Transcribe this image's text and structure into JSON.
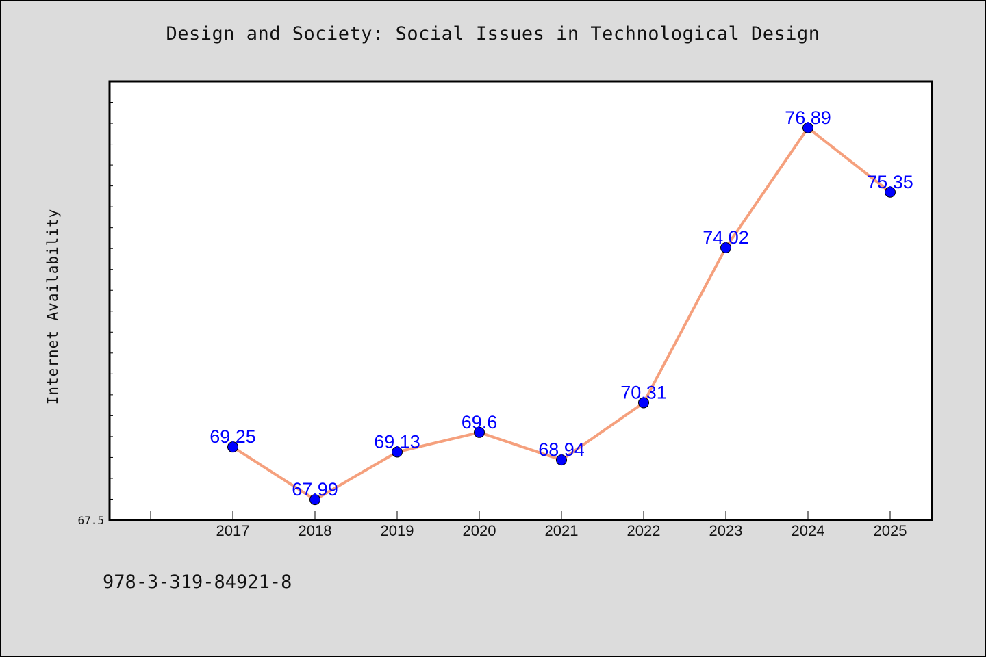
{
  "chart_data": {
    "type": "line",
    "title": "Design and Society: Social Issues in Technological Design",
    "xlabel": "",
    "ylabel": "Internet Availability",
    "categories": [
      "2017",
      "2018",
      "2019",
      "2020",
      "2021",
      "2022",
      "2023",
      "2024",
      "2025"
    ],
    "series": [
      {
        "values": [
          69.25,
          67.99,
          69.13,
          69.6,
          68.94,
          70.31,
          74.02,
          76.89,
          75.35
        ],
        "data_labels": [
          "69.25",
          "67.99",
          "69.13",
          "69.6",
          "68.94",
          "70.31",
          "74.02",
          "76.89",
          "75.35"
        ]
      }
    ],
    "ylim": [
      67.5,
      78.0
    ],
    "y_tick_labels": [
      "67.5"
    ],
    "grid": false,
    "legend": "none",
    "colors": {
      "line": "#f5a07d",
      "marker": "#0000ff",
      "data_label": "#0000ff",
      "plot_background": "#ffffff",
      "page_background": "#dcdcdc"
    }
  },
  "footer": {
    "isbn": "978-3-319-84921-8"
  }
}
